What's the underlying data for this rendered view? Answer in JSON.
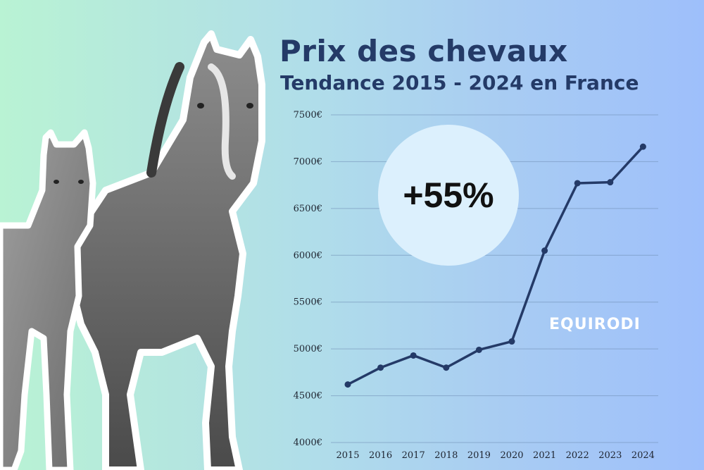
{
  "title": "Prix des chevaux",
  "subtitle": "Tendance 2015 - 2024 en France",
  "badge": "+55%",
  "brand": "EQUIRODI",
  "colors": {
    "line": "#243a67",
    "title": "#243a67",
    "badge": "#dcf0fd",
    "grid": "#6f8fb5"
  },
  "image": {
    "subject": "horse-and-foal-photo"
  },
  "chart_data": {
    "type": "line",
    "x": [
      "2015",
      "2016",
      "2017",
      "2018",
      "2019",
      "2020",
      "2021",
      "2022",
      "2023",
      "2024"
    ],
    "series": [
      {
        "values": [
          4620,
          4800,
          4930,
          4800,
          4990,
          5080,
          6050,
          6770,
          6780,
          7160
        ]
      }
    ],
    "ylim": [
      4000,
      7500
    ],
    "yticks": [
      4000,
      4500,
      5000,
      5500,
      6000,
      6500,
      7000,
      7500
    ],
    "ytick_labels": [
      "4000€",
      "4500€",
      "5000€",
      "5500€",
      "6000€",
      "6500€",
      "7000€",
      "7500€"
    ],
    "grid": true,
    "markers": true
  }
}
